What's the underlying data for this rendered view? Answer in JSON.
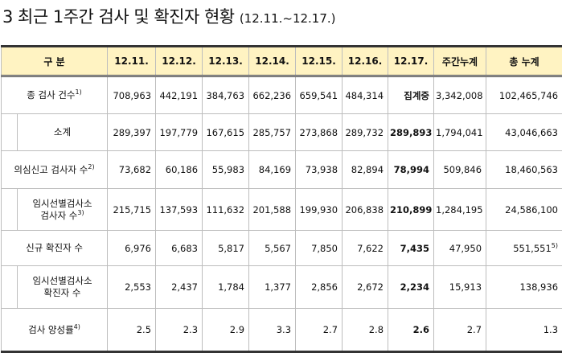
{
  "title": {
    "main": "3 최근 1주간 검사 및 확진자 현황",
    "date_range": "(12.11.~12.17.)"
  },
  "headers": [
    "구  분",
    "12.11.",
    "12.12.",
    "12.13.",
    "12.14.",
    "12.15.",
    "12.16.",
    "12.17.",
    "주간누계",
    "총 누계"
  ],
  "rows": [
    {
      "label": "종 검사 건수",
      "note": "1)",
      "values": [
        "708,963",
        "442,191",
        "384,763",
        "662,236",
        "659,541",
        "484,314",
        "집계중",
        "3,342,008",
        "102,465,746"
      ]
    },
    {
      "label": "소계",
      "note": "",
      "values": [
        "289,397",
        "197,779",
        "167,615",
        "285,757",
        "273,868",
        "289,732",
        "289,893",
        "1,794,041",
        "43,046,663"
      ]
    },
    {
      "label": "의심신고 검사자 수",
      "note": "2)",
      "values": [
        "73,682",
        "60,186",
        "55,983",
        "84,169",
        "73,938",
        "82,894",
        "78,994",
        "509,846",
        "18,460,563"
      ]
    },
    {
      "label_line1": "임시선별검사소",
      "label_line2": "검사자 수",
      "note": "3)",
      "values": [
        "215,715",
        "137,593",
        "111,632",
        "201,588",
        "199,930",
        "206,838",
        "210,899",
        "1,284,195",
        "24,586,100"
      ]
    },
    {
      "label": "신규 확진자 수",
      "note": "",
      "values": [
        "6,976",
        "6,683",
        "5,817",
        "5,567",
        "7,850",
        "7,622",
        "7,435",
        "47,950",
        "551,551"
      ],
      "value_note": "5)"
    },
    {
      "label_line1": "임시선별검사소",
      "label_line2": "확진자 수",
      "note": "",
      "values": [
        "2,553",
        "2,437",
        "1,784",
        "1,377",
        "2,856",
        "2,672",
        "2,234",
        "15,913",
        "138,936"
      ]
    },
    {
      "label": "검사 양성률",
      "note": "4)",
      "values": [
        "2.5",
        "2.3",
        "2.9",
        "3.3",
        "2.7",
        "2.8",
        "2.6",
        "2.7",
        "1.3"
      ]
    }
  ]
}
